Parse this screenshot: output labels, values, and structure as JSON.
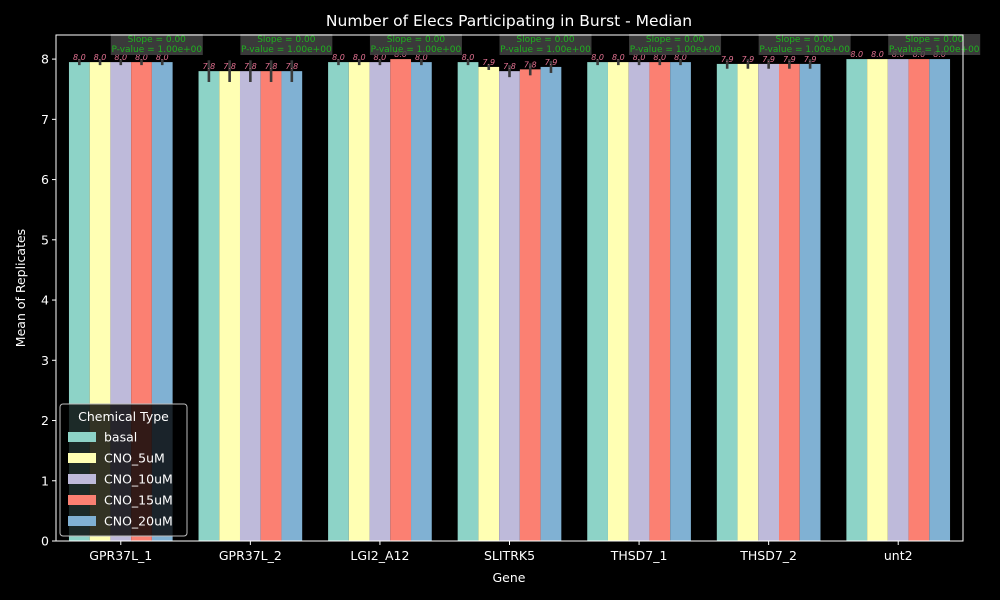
{
  "chart_data": {
    "type": "bar",
    "title": "Number of Elecs Participating in Burst - Median",
    "xlabel": "Gene",
    "ylabel": "Mean of Replicates",
    "ylim": [
      0,
      8.4
    ],
    "yticks": [
      0,
      1,
      2,
      3,
      4,
      5,
      6,
      7,
      8
    ],
    "categories": [
      "GPR37L_1",
      "GPR37L_2",
      "LGI2_A12",
      "SLITRK5",
      "THSD7_1",
      "THSD7_2",
      "unt2"
    ],
    "legend_title": "Chemical Type",
    "legend_position": "lower-left",
    "grid": false,
    "series": [
      {
        "name": "basal",
        "color": "#8dd3c7",
        "values": [
          7.95,
          7.8,
          7.95,
          7.95,
          7.95,
          7.92,
          8.0
        ],
        "labels": [
          "8.0",
          "7.8",
          "8.0",
          "8.0",
          "8.0",
          "7.9",
          "8.0"
        ],
        "err": [
          0.05,
          0.18,
          0.05,
          0.05,
          0.05,
          0.08,
          0.0
        ]
      },
      {
        "name": "CNO_5uM",
        "color": "#ffffb3",
        "values": [
          7.95,
          7.8,
          7.95,
          7.87,
          7.95,
          7.92,
          8.0
        ],
        "labels": [
          "8.0",
          "7.8",
          "8.0",
          "7.9",
          "8.0",
          "7.9",
          "8.0"
        ],
        "err": [
          0.05,
          0.18,
          0.05,
          0.05,
          0.05,
          0.08,
          0.0
        ]
      },
      {
        "name": "CNO_10uM",
        "color": "#bebada",
        "values": [
          7.95,
          7.8,
          7.95,
          7.8,
          7.95,
          7.92,
          8.0
        ],
        "labels": [
          "8.0",
          "7.8",
          "8.0",
          "7.8",
          "8.0",
          "7.9",
          "8.0"
        ],
        "err": [
          0.05,
          0.18,
          0.05,
          0.1,
          0.05,
          0.08,
          0.0
        ]
      },
      {
        "name": "CNO_15uM",
        "color": "#fb8072",
        "values": [
          7.95,
          7.8,
          8.0,
          7.83,
          7.95,
          7.92,
          8.0
        ],
        "labels": [
          "8.0",
          "7.8",
          "8.0",
          "7.8",
          "8.0",
          "7.9",
          "8.0"
        ],
        "err": [
          0.05,
          0.18,
          0.0,
          0.1,
          0.05,
          0.08,
          0.0
        ]
      },
      {
        "name": "CNO_20uM",
        "color": "#80b1d3",
        "values": [
          7.95,
          7.8,
          7.95,
          7.87,
          7.95,
          7.92,
          8.0
        ],
        "labels": [
          "8.0",
          "7.8",
          "8.0",
          "7.9",
          "8.0",
          "7.9",
          "8.0"
        ],
        "err": [
          0.05,
          0.18,
          0.05,
          0.1,
          0.05,
          0.08,
          0.0
        ]
      }
    ],
    "annotations": [
      {
        "category": "GPR37L_1",
        "line1": "Slope = 0.00",
        "line2": "P-value = 1.00e+00"
      },
      {
        "category": "GPR37L_2",
        "line1": "Slope = 0.00",
        "line2": "P-value = 1.00e+00"
      },
      {
        "category": "LGI2_A12",
        "line1": "Slope = 0.00",
        "line2": "P-value = 1.00e+00"
      },
      {
        "category": "SLITRK5",
        "line1": "Slope = 0.00",
        "line2": "P-value = 1.00e+00"
      },
      {
        "category": "THSD7_1",
        "line1": "Slope = 0.00",
        "line2": "P-value = 1.00e+00"
      },
      {
        "category": "THSD7_2",
        "line1": "Slope = 0.00",
        "line2": "P-value = 1.00e+00"
      },
      {
        "category": "unt2",
        "line1": "Slope = 0.00",
        "line2": "P-value = 1.00e+00"
      }
    ],
    "colors": {
      "background": "#000000",
      "axes": "#ffffff",
      "value_label": "#e07090",
      "annotation_text": "#1fb01f",
      "annotation_box": "#444444",
      "error_bar": "#3a3a3a"
    }
  }
}
